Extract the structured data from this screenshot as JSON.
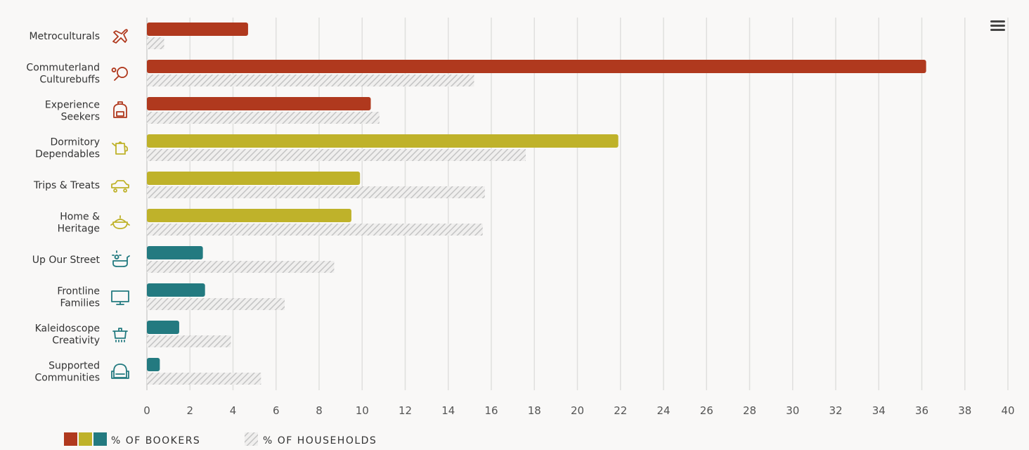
{
  "chart_data": {
    "type": "bar",
    "orientation": "horizontal",
    "categories": [
      [
        "Metroculturals"
      ],
      [
        "Commuterland",
        "Culturebuffs"
      ],
      [
        "Experience",
        "Seekers"
      ],
      [
        "Dormitory",
        "Dependables"
      ],
      [
        "Trips & Treats"
      ],
      [
        "Home &",
        "Heritage"
      ],
      [
        "Up Our Street"
      ],
      [
        "Frontline",
        "Families"
      ],
      [
        "Kaleidoscope",
        "Creativity"
      ],
      [
        "Supported",
        "Communities"
      ]
    ],
    "category_icons": [
      "airplane-icon",
      "tennis-racket-icon",
      "backpack-icon",
      "teapot-icon",
      "car-icon",
      "cooking-pot-icon",
      "sun-bath-icon",
      "monitor-icon",
      "steam-pot-icon",
      "armchair-icon"
    ],
    "category_colors": [
      "#b0391e",
      "#b0391e",
      "#b0391e",
      "#bfb22a",
      "#bfb22a",
      "#bfb22a",
      "#237a80",
      "#237a80",
      "#237a80",
      "#237a80"
    ],
    "series": [
      {
        "name": "% OF BOOKERS",
        "values": [
          4.7,
          36.2,
          10.4,
          21.9,
          9.9,
          9.5,
          2.6,
          2.7,
          1.5,
          0.6
        ]
      },
      {
        "name": "% OF HOUSEHOLDS",
        "values": [
          0.8,
          15.2,
          10.8,
          17.6,
          15.7,
          15.6,
          8.7,
          6.4,
          3.9,
          5.3
        ],
        "pattern": "hatched-grey"
      }
    ],
    "xlim": [
      0,
      40
    ],
    "xticks": [
      "0",
      "2",
      "4",
      "6",
      "8",
      "10",
      "12",
      "14",
      "16",
      "18",
      "20",
      "22",
      "24",
      "26",
      "28",
      "30",
      "32",
      "34",
      "36",
      "38",
      "40"
    ],
    "grid": true,
    "legend_position": "bottom-left",
    "legend_colors": [
      "#b0391e",
      "#bfb22a",
      "#237a80"
    ]
  },
  "menu_icon": "hamburger-menu-icon"
}
